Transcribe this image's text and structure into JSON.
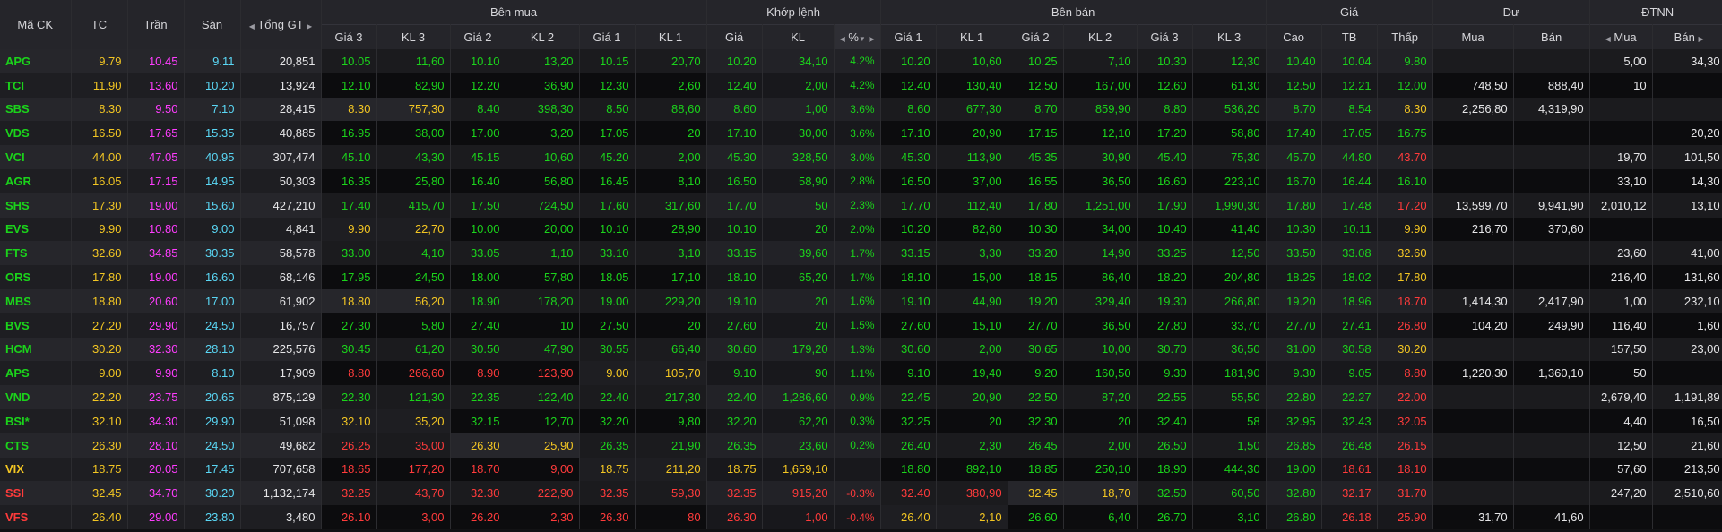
{
  "colors": {
    "up": "#1bd31b",
    "down": "#ff3b3b",
    "reference": "#f3c623",
    "ceiling": "#ff3dff",
    "floor": "#5ad7f5",
    "neutral": "#e6e6e8"
  },
  "headers": {
    "symbol": "Mã CK",
    "ref": "TC",
    "ceil": "Trần",
    "floor": "Sàn",
    "total": "Tổng GT",
    "bid_group": "Bên mua",
    "match_group": "Khớp lệnh",
    "ask_group": "Bên bán",
    "price_group": "Giá",
    "remain_group": "Dư",
    "foreign_group": "ĐTNN",
    "bid": [
      "Giá 3",
      "KL 3",
      "Giá 2",
      "KL 2",
      "Giá 1",
      "KL 1"
    ],
    "match": [
      "Giá",
      "KL",
      "%"
    ],
    "ask": [
      "Giá 1",
      "KL 1",
      "Giá 2",
      "KL 2",
      "Giá 3",
      "KL 3"
    ],
    "price": [
      "Cao",
      "TB",
      "Thấp"
    ],
    "remain": [
      "Mua",
      "Bán"
    ],
    "foreign": [
      "Mua",
      "Bán"
    ]
  },
  "rows": [
    {
      "sym": "APG",
      "c": "up",
      "tc": "9.79",
      "tran": "10.45",
      "san": "9.11",
      "tot": "20,851",
      "b3": "10.05",
      "b3c": "up",
      "bv3": "11,60",
      "b2": "10.10",
      "b2c": "up",
      "bv2": "13,20",
      "b1": "10.15",
      "b1c": "up",
      "bv1": "20,70",
      "mp": "10.20",
      "mc": "up",
      "mv": "34,10",
      "pct": "4.2%",
      "a1": "10.20",
      "a1c": "up",
      "av1": "10,60",
      "a2": "10.25",
      "a2c": "up",
      "av2": "7,10",
      "a3": "10.30",
      "a3c": "up",
      "av3": "12,30",
      "hi": "10.40",
      "hic": "up",
      "avg": "10.04",
      "avgc": "up",
      "lo": "9.80",
      "loc": "up",
      "rb": "",
      "rs": "",
      "fb": "5,00",
      "fs": "34,30"
    },
    {
      "sym": "TCI",
      "c": "up",
      "tc": "11.90",
      "tran": "13.60",
      "san": "10.20",
      "tot": "13,924",
      "b3": "12.10",
      "b3c": "up",
      "bv3": "82,90",
      "b2": "12.20",
      "b2c": "up",
      "bv2": "36,90",
      "b1": "12.30",
      "b1c": "up",
      "bv1": "2,60",
      "mp": "12.40",
      "mc": "up",
      "mv": "2,00",
      "pct": "4.2%",
      "a1": "12.40",
      "a1c": "up",
      "av1": "130,40",
      "a2": "12.50",
      "a2c": "up",
      "av2": "167,00",
      "a3": "12.60",
      "a3c": "up",
      "av3": "61,30",
      "hi": "12.50",
      "hic": "up",
      "avg": "12.21",
      "avgc": "up",
      "lo": "12.00",
      "loc": "up",
      "rb": "748,50",
      "rs": "888,40",
      "fb": "10",
      "fs": ""
    },
    {
      "sym": "SBS",
      "c": "up",
      "tc": "8.30",
      "tran": "9.50",
      "san": "7.10",
      "tot": "28,415",
      "b3": "8.30",
      "b3c": "ref",
      "bv3": "757,30",
      "b2": "8.40",
      "b2c": "up",
      "bv2": "398,30",
      "b1": "8.50",
      "b1c": "up",
      "bv1": "88,60",
      "mp": "8.60",
      "mc": "up",
      "mv": "1,00",
      "pct": "3.6%",
      "a1": "8.60",
      "a1c": "up",
      "av1": "677,30",
      "a2": "8.70",
      "a2c": "up",
      "av2": "859,90",
      "a3": "8.80",
      "a3c": "up",
      "av3": "536,20",
      "hi": "8.70",
      "hic": "up",
      "avg": "8.54",
      "avgc": "up",
      "lo": "8.30",
      "loc": "ref",
      "rb": "2,256,80",
      "rs": "4,319,90",
      "fb": "",
      "fs": ""
    },
    {
      "sym": "VDS",
      "c": "up",
      "tc": "16.50",
      "tran": "17.65",
      "san": "15.35",
      "tot": "40,885",
      "b3": "16.95",
      "b3c": "up",
      "bv3": "38,00",
      "b2": "17.00",
      "b2c": "up",
      "bv2": "3,20",
      "b1": "17.05",
      "b1c": "up",
      "bv1": "20",
      "mp": "17.10",
      "mc": "up",
      "mv": "30,00",
      "pct": "3.6%",
      "a1": "17.10",
      "a1c": "up",
      "av1": "20,90",
      "a2": "17.15",
      "a2c": "up",
      "av2": "12,10",
      "a3": "17.20",
      "a3c": "up",
      "av3": "58,80",
      "hi": "17.40",
      "hic": "up",
      "avg": "17.05",
      "avgc": "up",
      "lo": "16.75",
      "loc": "up",
      "rb": "",
      "rs": "",
      "fb": "",
      "fs": "20,20"
    },
    {
      "sym": "VCI",
      "c": "up",
      "tc": "44.00",
      "tran": "47.05",
      "san": "40.95",
      "tot": "307,474",
      "b3": "45.10",
      "b3c": "up",
      "bv3": "43,30",
      "b2": "45.15",
      "b2c": "up",
      "bv2": "10,60",
      "b1": "45.20",
      "b1c": "up",
      "bv1": "2,00",
      "mp": "45.30",
      "mc": "up",
      "mv": "328,50",
      "pct": "3.0%",
      "a1": "45.30",
      "a1c": "up",
      "av1": "113,90",
      "a2": "45.35",
      "a2c": "up",
      "av2": "30,90",
      "a3": "45.40",
      "a3c": "up",
      "av3": "75,30",
      "hi": "45.70",
      "hic": "up",
      "avg": "44.80",
      "avgc": "up",
      "lo": "43.70",
      "loc": "dn",
      "rb": "",
      "rs": "",
      "fb": "19,70",
      "fs": "101,50"
    },
    {
      "sym": "AGR",
      "c": "up",
      "tc": "16.05",
      "tran": "17.15",
      "san": "14.95",
      "tot": "50,303",
      "b3": "16.35",
      "b3c": "up",
      "bv3": "25,80",
      "b2": "16.40",
      "b2c": "up",
      "bv2": "56,80",
      "b1": "16.45",
      "b1c": "up",
      "bv1": "8,10",
      "mp": "16.50",
      "mc": "up",
      "mv": "58,90",
      "pct": "2.8%",
      "a1": "16.50",
      "a1c": "up",
      "av1": "37,00",
      "a2": "16.55",
      "a2c": "up",
      "av2": "36,50",
      "a3": "16.60",
      "a3c": "up",
      "av3": "223,10",
      "hi": "16.70",
      "hic": "up",
      "avg": "16.44",
      "avgc": "up",
      "lo": "16.10",
      "loc": "up",
      "rb": "",
      "rs": "",
      "fb": "33,10",
      "fs": "14,30"
    },
    {
      "sym": "SHS",
      "c": "up",
      "tc": "17.30",
      "tran": "19.00",
      "san": "15.60",
      "tot": "427,210",
      "b3": "17.40",
      "b3c": "up",
      "bv3": "415,70",
      "b2": "17.50",
      "b2c": "up",
      "bv2": "724,50",
      "b1": "17.60",
      "b1c": "up",
      "bv1": "317,60",
      "mp": "17.70",
      "mc": "up",
      "mv": "50",
      "pct": "2.3%",
      "a1": "17.70",
      "a1c": "up",
      "av1": "112,40",
      "a2": "17.80",
      "a2c": "up",
      "av2": "1,251,00",
      "a3": "17.90",
      "a3c": "up",
      "av3": "1,990,30",
      "hi": "17.80",
      "hic": "up",
      "avg": "17.48",
      "avgc": "up",
      "lo": "17.20",
      "loc": "dn",
      "rb": "13,599,70",
      "rs": "9,941,90",
      "fb": "2,010,12",
      "fs": "13,10"
    },
    {
      "sym": "EVS",
      "c": "up",
      "tc": "9.90",
      "tran": "10.80",
      "san": "9.00",
      "tot": "4,841",
      "b3": "9.90",
      "b3c": "ref",
      "bv3": "22,70",
      "b2": "10.00",
      "b2c": "up",
      "bv2": "20,00",
      "b1": "10.10",
      "b1c": "up",
      "bv1": "28,90",
      "mp": "10.10",
      "mc": "up",
      "mv": "20",
      "pct": "2.0%",
      "a1": "10.20",
      "a1c": "up",
      "av1": "82,60",
      "a2": "10.30",
      "a2c": "up",
      "av2": "34,00",
      "a3": "10.40",
      "a3c": "up",
      "av3": "41,40",
      "hi": "10.30",
      "hic": "up",
      "avg": "10.11",
      "avgc": "up",
      "lo": "9.90",
      "loc": "ref",
      "rb": "216,70",
      "rs": "370,60",
      "fb": "",
      "fs": ""
    },
    {
      "sym": "FTS",
      "c": "up",
      "tc": "32.60",
      "tran": "34.85",
      "san": "30.35",
      "tot": "58,578",
      "b3": "33.00",
      "b3c": "up",
      "bv3": "4,10",
      "b2": "33.05",
      "b2c": "up",
      "bv2": "1,10",
      "b1": "33.10",
      "b1c": "up",
      "bv1": "3,10",
      "mp": "33.15",
      "mc": "up",
      "mv": "39,60",
      "pct": "1.7%",
      "a1": "33.15",
      "a1c": "up",
      "av1": "3,30",
      "a2": "33.20",
      "a2c": "up",
      "av2": "14,90",
      "a3": "33.25",
      "a3c": "up",
      "av3": "12,50",
      "hi": "33.50",
      "hic": "up",
      "avg": "33.08",
      "avgc": "up",
      "lo": "32.60",
      "loc": "ref",
      "rb": "",
      "rs": "",
      "fb": "23,60",
      "fs": "41,00"
    },
    {
      "sym": "ORS",
      "c": "up",
      "tc": "17.80",
      "tran": "19.00",
      "san": "16.60",
      "tot": "68,146",
      "b3": "17.95",
      "b3c": "up",
      "bv3": "24,50",
      "b2": "18.00",
      "b2c": "up",
      "bv2": "57,80",
      "b1": "18.05",
      "b1c": "up",
      "bv1": "17,10",
      "mp": "18.10",
      "mc": "up",
      "mv": "65,20",
      "pct": "1.7%",
      "a1": "18.10",
      "a1c": "up",
      "av1": "15,00",
      "a2": "18.15",
      "a2c": "up",
      "av2": "86,40",
      "a3": "18.20",
      "a3c": "up",
      "av3": "204,80",
      "hi": "18.25",
      "hic": "up",
      "avg": "18.02",
      "avgc": "up",
      "lo": "17.80",
      "loc": "ref",
      "rb": "",
      "rs": "",
      "fb": "216,40",
      "fs": "131,60"
    },
    {
      "sym": "MBS",
      "c": "up",
      "tc": "18.80",
      "tran": "20.60",
      "san": "17.00",
      "tot": "61,902",
      "b3": "18.80",
      "b3c": "ref",
      "bv3": "56,20",
      "b2": "18.90",
      "b2c": "up",
      "bv2": "178,20",
      "b1": "19.00",
      "b1c": "up",
      "bv1": "229,20",
      "mp": "19.10",
      "mc": "up",
      "mv": "20",
      "pct": "1.6%",
      "a1": "19.10",
      "a1c": "up",
      "av1": "44,90",
      "a2": "19.20",
      "a2c": "up",
      "av2": "329,40",
      "a3": "19.30",
      "a3c": "up",
      "av3": "266,80",
      "hi": "19.20",
      "hic": "up",
      "avg": "18.96",
      "avgc": "up",
      "lo": "18.70",
      "loc": "dn",
      "rb": "1,414,30",
      "rs": "2,417,90",
      "fb": "1,00",
      "fs": "232,10"
    },
    {
      "sym": "BVS",
      "c": "up",
      "tc": "27.20",
      "tran": "29.90",
      "san": "24.50",
      "tot": "16,757",
      "b3": "27.30",
      "b3c": "up",
      "bv3": "5,80",
      "b2": "27.40",
      "b2c": "up",
      "bv2": "10",
      "b1": "27.50",
      "b1c": "up",
      "bv1": "20",
      "mp": "27.60",
      "mc": "up",
      "mv": "20",
      "pct": "1.5%",
      "a1": "27.60",
      "a1c": "up",
      "av1": "15,10",
      "a2": "27.70",
      "a2c": "up",
      "av2": "36,50",
      "a3": "27.80",
      "a3c": "up",
      "av3": "33,70",
      "hi": "27.70",
      "hic": "up",
      "avg": "27.41",
      "avgc": "up",
      "lo": "26.80",
      "loc": "dn",
      "rb": "104,20",
      "rs": "249,90",
      "fb": "116,40",
      "fs": "1,60"
    },
    {
      "sym": "HCM",
      "c": "up",
      "tc": "30.20",
      "tran": "32.30",
      "san": "28.10",
      "tot": "225,576",
      "b3": "30.45",
      "b3c": "up",
      "bv3": "61,20",
      "b2": "30.50",
      "b2c": "up",
      "bv2": "47,90",
      "b1": "30.55",
      "b1c": "up",
      "bv1": "66,40",
      "mp": "30.60",
      "mc": "up",
      "mv": "179,20",
      "pct": "1.3%",
      "a1": "30.60",
      "a1c": "up",
      "av1": "2,00",
      "a2": "30.65",
      "a2c": "up",
      "av2": "10,00",
      "a3": "30.70",
      "a3c": "up",
      "av3": "36,50",
      "hi": "31.00",
      "hic": "up",
      "avg": "30.58",
      "avgc": "up",
      "lo": "30.20",
      "loc": "ref",
      "rb": "",
      "rs": "",
      "fb": "157,50",
      "fs": "23,00"
    },
    {
      "sym": "APS",
      "c": "up",
      "tc": "9.00",
      "tran": "9.90",
      "san": "8.10",
      "tot": "17,909",
      "b3": "8.80",
      "b3c": "dn",
      "bv3": "266,60",
      "b2": "8.90",
      "b2c": "dn",
      "bv2": "123,90",
      "b1": "9.00",
      "b1c": "ref",
      "bv1": "105,70",
      "mp": "9.10",
      "mc": "up",
      "mv": "90",
      "pct": "1.1%",
      "a1": "9.10",
      "a1c": "up",
      "av1": "19,40",
      "a2": "9.20",
      "a2c": "up",
      "av2": "160,50",
      "a3": "9.30",
      "a3c": "up",
      "av3": "181,90",
      "hi": "9.30",
      "hic": "up",
      "avg": "9.05",
      "avgc": "up",
      "lo": "8.80",
      "loc": "dn",
      "rb": "1,220,30",
      "rs": "1,360,10",
      "fb": "50",
      "fs": ""
    },
    {
      "sym": "VND",
      "c": "up",
      "tc": "22.20",
      "tran": "23.75",
      "san": "20.65",
      "tot": "875,129",
      "b3": "22.30",
      "b3c": "up",
      "bv3": "121,30",
      "b2": "22.35",
      "b2c": "up",
      "bv2": "122,40",
      "b1": "22.40",
      "b1c": "up",
      "bv1": "217,30",
      "mp": "22.40",
      "mc": "up",
      "mv": "1,286,60",
      "pct": "0.9%",
      "a1": "22.45",
      "a1c": "up",
      "av1": "20,90",
      "a2": "22.50",
      "a2c": "up",
      "av2": "87,20",
      "a3": "22.55",
      "a3c": "up",
      "av3": "55,50",
      "hi": "22.80",
      "hic": "up",
      "avg": "22.27",
      "avgc": "up",
      "lo": "22.00",
      "loc": "dn",
      "rb": "",
      "rs": "",
      "fb": "2,679,40",
      "fs": "1,191,89"
    },
    {
      "sym": "BSI*",
      "c": "up",
      "tc": "32.10",
      "tran": "34.30",
      "san": "29.90",
      "tot": "51,098",
      "b3": "32.10",
      "b3c": "ref",
      "bv3": "35,20",
      "b2": "32.15",
      "b2c": "up",
      "bv2": "12,70",
      "b1": "32.20",
      "b1c": "up",
      "bv1": "9,80",
      "mp": "32.20",
      "mc": "up",
      "mv": "62,20",
      "pct": "0.3%",
      "a1": "32.25",
      "a1c": "up",
      "av1": "20",
      "a2": "32.30",
      "a2c": "up",
      "av2": "20",
      "a3": "32.40",
      "a3c": "up",
      "av3": "58",
      "hi": "32.95",
      "hic": "up",
      "avg": "32.43",
      "avgc": "up",
      "lo": "32.05",
      "loc": "dn",
      "rb": "",
      "rs": "",
      "fb": "4,40",
      "fs": "16,50"
    },
    {
      "sym": "CTS",
      "c": "up",
      "tc": "26.30",
      "tran": "28.10",
      "san": "24.50",
      "tot": "49,682",
      "b3": "26.25",
      "b3c": "dn",
      "bv3": "35,00",
      "b2": "26.30",
      "b2c": "ref",
      "bv2": "25,90",
      "b1": "26.35",
      "b1c": "up",
      "bv1": "21,90",
      "mp": "26.35",
      "mc": "up",
      "mv": "23,60",
      "pct": "0.2%",
      "a1": "26.40",
      "a1c": "up",
      "av1": "2,30",
      "a2": "26.45",
      "a2c": "up",
      "av2": "2,00",
      "a3": "26.50",
      "a3c": "up",
      "av3": "1,50",
      "hi": "26.85",
      "hic": "up",
      "avg": "26.48",
      "avgc": "up",
      "lo": "26.15",
      "loc": "dn",
      "rb": "",
      "rs": "",
      "fb": "12,50",
      "fs": "21,60"
    },
    {
      "sym": "VIX",
      "c": "ref",
      "tc": "18.75",
      "tran": "20.05",
      "san": "17.45",
      "tot": "707,658",
      "b3": "18.65",
      "b3c": "dn",
      "bv3": "177,20",
      "b2": "18.70",
      "b2c": "dn",
      "bv2": "9,00",
      "b1": "18.75",
      "b1c": "ref",
      "bv1": "211,20",
      "mp": "18.75",
      "mc": "ref",
      "mv": "1,659,10",
      "pct": "",
      "a1": "18.80",
      "a1c": "up",
      "av1": "892,10",
      "a2": "18.85",
      "a2c": "up",
      "av2": "250,10",
      "a3": "18.90",
      "a3c": "up",
      "av3": "444,30",
      "hi": "19.00",
      "hic": "up",
      "avg": "18.61",
      "avgc": "dn",
      "lo": "18.10",
      "loc": "dn",
      "rb": "",
      "rs": "",
      "fb": "57,60",
      "fs": "213,50"
    },
    {
      "sym": "SSI",
      "c": "dn",
      "tc": "32.45",
      "tran": "34.70",
      "san": "30.20",
      "tot": "1,132,174",
      "b3": "32.25",
      "b3c": "dn",
      "bv3": "43,70",
      "b2": "32.30",
      "b2c": "dn",
      "bv2": "222,90",
      "b1": "32.35",
      "b1c": "dn",
      "bv1": "59,30",
      "mp": "32.35",
      "mc": "dn",
      "mv": "915,20",
      "pct": "-0.3%",
      "a1": "32.40",
      "a1c": "dn",
      "av1": "380,90",
      "a2": "32.45",
      "a2c": "ref",
      "av2": "18,70",
      "a3": "32.50",
      "a3c": "up",
      "av3": "60,50",
      "hi": "32.80",
      "hic": "up",
      "avg": "32.17",
      "avgc": "dn",
      "lo": "31.70",
      "loc": "dn",
      "rb": "",
      "rs": "",
      "fb": "247,20",
      "fs": "2,510,60"
    },
    {
      "sym": "VFS",
      "c": "dn",
      "tc": "26.40",
      "tran": "29.00",
      "san": "23.80",
      "tot": "3,480",
      "b3": "26.10",
      "b3c": "dn",
      "bv3": "3,00",
      "b2": "26.20",
      "b2c": "dn",
      "bv2": "2,30",
      "b1": "26.30",
      "b1c": "dn",
      "bv1": "80",
      "mp": "26.30",
      "mc": "dn",
      "mv": "1,00",
      "pct": "-0.4%",
      "a1": "26.40",
      "a1c": "ref",
      "av1": "2,10",
      "a2": "26.60",
      "a2c": "up",
      "av2": "6,40",
      "a3": "26.70",
      "a3c": "up",
      "av3": "3,10",
      "hi": "26.80",
      "hic": "up",
      "avg": "26.18",
      "avgc": "dn",
      "lo": "25.90",
      "loc": "dn",
      "rb": "31,70",
      "rs": "41,60",
      "fb": "",
      "fs": ""
    }
  ]
}
